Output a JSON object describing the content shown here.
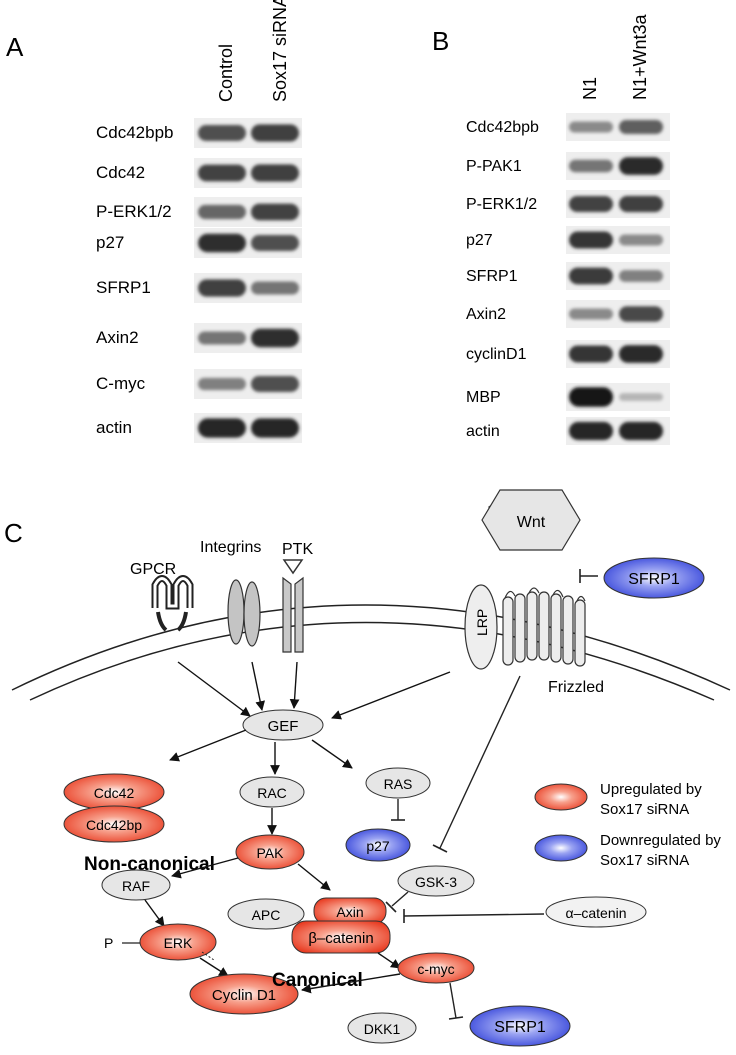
{
  "panel_a": {
    "letter": "A",
    "columns": [
      "Control",
      "Sox17 siRNA"
    ],
    "rows": [
      {
        "label": "Cdc42bpb",
        "intensity": [
          0.72,
          0.8
        ]
      },
      {
        "label": "Cdc42",
        "intensity": [
          0.78,
          0.8
        ]
      },
      {
        "label": "P-ERK1/2",
        "intensity": [
          0.62,
          0.78
        ]
      },
      {
        "label": "p27",
        "intensity": [
          0.88,
          0.72
        ]
      },
      {
        "label": "SFRP1",
        "intensity": [
          0.8,
          0.55
        ]
      },
      {
        "label": "Axin2",
        "intensity": [
          0.55,
          0.88
        ]
      },
      {
        "label": "C-myc",
        "intensity": [
          0.5,
          0.72
        ]
      },
      {
        "label": "actin",
        "intensity": [
          0.92,
          0.92
        ]
      }
    ]
  },
  "panel_b": {
    "letter": "B",
    "columns": [
      "N1",
      "N1+Wnt3a"
    ],
    "rows": [
      {
        "label": "Cdc42bpb",
        "intensity": [
          0.45,
          0.65
        ]
      },
      {
        "label": "P-PAK1",
        "intensity": [
          0.55,
          0.9
        ]
      },
      {
        "label": "P-ERK1/2",
        "intensity": [
          0.78,
          0.8
        ]
      },
      {
        "label": "p27",
        "intensity": [
          0.85,
          0.45
        ]
      },
      {
        "label": "SFRP1",
        "intensity": [
          0.82,
          0.5
        ]
      },
      {
        "label": "Axin2",
        "intensity": [
          0.45,
          0.75
        ]
      },
      {
        "label": "cyclinD1",
        "intensity": [
          0.85,
          0.9
        ]
      },
      {
        "label": "MBP",
        "intensity": [
          1.0,
          0.25
        ]
      },
      {
        "label": "actin",
        "intensity": [
          0.92,
          0.92
        ]
      }
    ]
  },
  "panel_c": {
    "letter": "C",
    "labels": {
      "gpcr": "GPCR",
      "integrins": "Integrins",
      "ptk": "PTK",
      "wnt": "Wnt",
      "lrp": "LRP",
      "frizzled": "Frizzled",
      "sfrp1_top": "SFRP1",
      "gef": "GEF",
      "cdc42": "Cdc42",
      "cdc42bp": "Cdc42bp",
      "rac": "RAC",
      "ras": "RAS",
      "p27": "p27",
      "non_canonical": "Non-canonical",
      "pak": "PAK",
      "raf": "RAF",
      "erk": "ERK",
      "p": "P",
      "apc": "APC",
      "axin": "Axin",
      "beta_catenin": "β–catenin",
      "gsk3": "GSK-3",
      "alpha_catenin": "α–catenin",
      "canonical": "Canonical",
      "cmyc": "c-myc",
      "cyclin_d1": "Cyclin D1",
      "dkk1": "DKK1",
      "sfrp1_bottom": "SFRP1"
    },
    "legend": {
      "up_line1": "Upregulated by",
      "up_line2": "Sox17 siRNA",
      "down_line1": "Downregulated by",
      "down_line2": "Sox17 siRNA"
    }
  },
  "colors": {
    "up": "#e8391f",
    "down": "#2f3fd8",
    "neutral": "#e6e6e6"
  }
}
